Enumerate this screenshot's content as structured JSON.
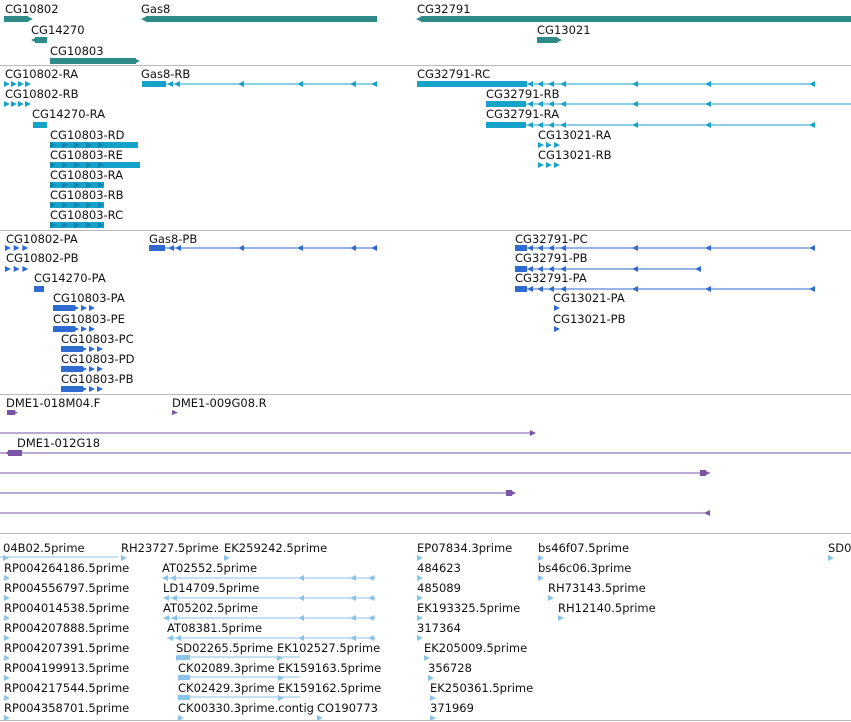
{
  "colors": {
    "gene": "#2f8a8a",
    "transcript": "#17a2c9",
    "protein": "#2f6ad0",
    "clone": "#7a55a6",
    "est": "#8cc3e8",
    "separator": "#b9b9b9"
  },
  "genes": [
    "CG10802",
    "CG14270",
    "CG10803",
    "Gas8",
    "CG32791",
    "CG13021"
  ],
  "transcripts": [
    "CG10802-RA",
    "CG10802-RB",
    "CG14270-RA",
    "CG10803-RD",
    "CG10803-RE",
    "CG10803-RA",
    "CG10803-RB",
    "CG10803-RC",
    "Gas8-RB",
    "CG32791-RC",
    "CG32791-RB",
    "CG32791-RA",
    "CG13021-RA",
    "CG13021-RB"
  ],
  "proteins": [
    "CG10802-PA",
    "CG10802-PB",
    "CG14270-PA",
    "CG10803-PA",
    "CG10803-PE",
    "CG10803-PC",
    "CG10803-PD",
    "CG10803-PB",
    "Gas8-PB",
    "CG32791-PC",
    "CG32791-PB",
    "CG32791-PA",
    "CG13021-PA",
    "CG13021-PB"
  ],
  "clones": [
    "DME1-018M04.F",
    "DME1-009G08.R",
    "DME1-012G18"
  ],
  "ests": [
    "04B02.5prime",
    "RH23727.5prime",
    "EK259242.5prime",
    "EP07834.3prime",
    "bs46f07.5prime",
    "SD0",
    "RP004264186.5prime",
    "AT02552.5prime",
    "484623",
    "bs46c06.3prime",
    "RP004556797.5prime",
    "LD14709.5prime",
    "485089",
    "RH73143.5prime",
    "RP004014538.5prime",
    "AT05202.5prime",
    "EK193325.5prime",
    "RH12140.5prime",
    "RP004207888.5prime",
    "AT08381.5prime",
    "317364",
    "RP004207391.5prime",
    "SD02265.5prime",
    "EK102527.5prime",
    "EK205009.5prime",
    "RP004199913.5prime",
    "CK02089.3prime",
    "EK159163.5prime",
    "356728",
    "RP004217544.5prime",
    "CK02429.3prime",
    "EK159162.5prime",
    "EK250361.5prime",
    "RP004358701.5prime",
    "CK00330.3prime.contig",
    "CO190773",
    "371969"
  ]
}
